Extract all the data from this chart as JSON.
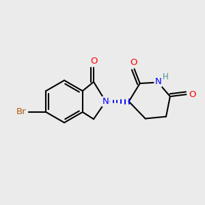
{
  "background_color": "#ebebeb",
  "bond_color": "#000000",
  "atom_colors": {
    "O": "#ff0000",
    "N": "#0000ff",
    "Br": "#b05a10",
    "H": "#4a9090",
    "C": "#000000"
  },
  "figsize": [
    3.0,
    3.0
  ],
  "dpi": 100,
  "lw": 1.5,
  "fs": 9.5
}
